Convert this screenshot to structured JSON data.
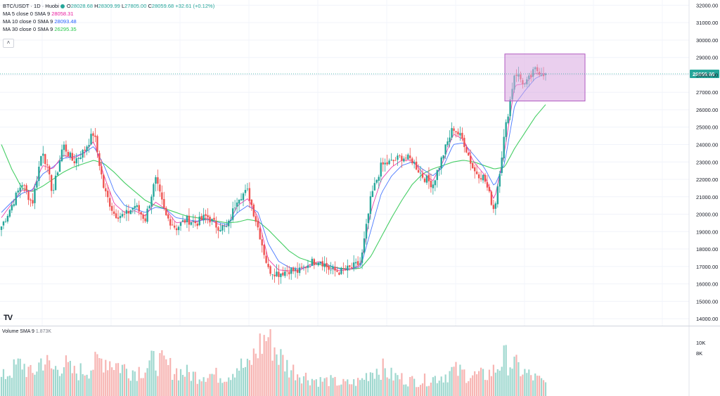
{
  "header": {
    "symbol": "BTC/USDT · 1D · Huobi",
    "open": "O28028.68",
    "high": "H28309.99",
    "low": "L27805.00",
    "close": "C28059.68",
    "change": "+32.61 (+0.12%)",
    "collapse_icon": "chevron-up-icon"
  },
  "indicators": [
    {
      "label": "MA 5 close 0 SMA 9",
      "value": "28058.31",
      "color": "#e91e9f"
    },
    {
      "label": "MA 10 close 0 SMA 9",
      "value": "28093.48",
      "color": "#2962ff"
    },
    {
      "label": "MA 30 close 0 SMA 9",
      "value": "26295.35",
      "color": "#26c64a"
    }
  ],
  "price_label": "28059.68",
  "volume_legend": {
    "label": "Volume SMA 9",
    "value": "1.873K"
  },
  "logo": "TV",
  "colors": {
    "up": "#26a69a",
    "down": "#ef5350",
    "vol_up": "#9fd8cf",
    "vol_down": "#f7b4b2",
    "highlight_fill": "#d9a7e0",
    "highlight_stroke": "#b05ac0",
    "price_line": "#26a69a"
  },
  "chart_data": {
    "type": "candlestick",
    "title": "BTC/USDT · 1D · Huobi",
    "y_axis_ticks": [
      32000,
      31000,
      30000,
      29000,
      28000,
      27000,
      26000,
      25000,
      24000,
      23000,
      22000,
      21000,
      20000,
      19000,
      18000,
      17000,
      16000,
      15000,
      14000
    ],
    "volume_axis_ticks": [
      "10K",
      "8K"
    ],
    "ylim": [
      13600,
      32300
    ],
    "current_price": 28059.68,
    "close_path": [
      19300,
      20500,
      21800,
      20600,
      23800,
      21200,
      24000,
      23000,
      23600,
      24700,
      21400,
      20000,
      19900,
      20500,
      19700,
      22000,
      19900,
      19200,
      19700,
      19500,
      19900,
      19300,
      19200,
      21000,
      21300,
      19200,
      16800,
      16600,
      16800,
      16700,
      17200,
      17400,
      16800,
      16700,
      16900,
      17200,
      21000,
      22800,
      23000,
      23300,
      23100,
      22200,
      21700,
      23400,
      25000,
      24200,
      22500,
      22100,
      20200,
      24600,
      28200,
      27400,
      28300,
      28059.68
    ],
    "ma_short_path": [
      19800,
      20600,
      21400,
      21300,
      22800,
      22600,
      23400,
      23200,
      23500,
      24200,
      22200,
      20600,
      20100,
      20200,
      19900,
      20700,
      20300,
      19500,
      19600,
      19550,
      19800,
      19450,
      19300,
      20500,
      20900,
      19800,
      17400,
      16800,
      16750,
      16750,
      17100,
      17300,
      16900,
      16750,
      16850,
      17100,
      20200,
      22000,
      22700,
      23100,
      23100,
      22400,
      21900,
      23000,
      24600,
      24300,
      23000,
      22300,
      20800,
      23600,
      27400,
      27500,
      28100,
      28058.31
    ],
    "ma_mid_path": [
      20100,
      20700,
      21200,
      21400,
      22300,
      22700,
      23200,
      23300,
      23500,
      23900,
      22800,
      21300,
      20500,
      20300,
      20100,
      20400,
      20300,
      19800,
      19700,
      19600,
      19700,
      19550,
      19400,
      20100,
      20500,
      20100,
      18300,
      17300,
      16950,
      16850,
      17000,
      17200,
      17050,
      16850,
      16850,
      17000,
      19100,
      21200,
      22200,
      22800,
      23000,
      22600,
      22200,
      22700,
      24000,
      24100,
      23400,
      22700,
      21600,
      22900,
      26300,
      27100,
      27800,
      28093.48
    ],
    "ma_long_path": [
      24000,
      22600,
      21500,
      21300,
      21600,
      22000,
      22400,
      22700,
      22900,
      23100,
      22900,
      22400,
      21800,
      21300,
      20800,
      20500,
      20300,
      20100,
      19900,
      19800,
      19700,
      19600,
      19500,
      19550,
      19700,
      19600,
      19100,
      18500,
      17900,
      17500,
      17300,
      17100,
      17000,
      16900,
      16850,
      16900,
      17600,
      18700,
      19800,
      20800,
      21700,
      22300,
      22600,
      22800,
      23000,
      23100,
      23000,
      22800,
      22600,
      22700,
      23800,
      24700,
      25600,
      26295.35
    ],
    "volume_path": [
      3.5,
      5,
      6.5,
      4,
      7.5,
      5,
      6.5,
      4.5,
      5,
      6,
      7.5,
      6.5,
      5.5,
      5,
      5.5,
      7,
      6,
      5,
      4.5,
      4,
      4.5,
      4,
      4,
      6,
      5.5,
      9.5,
      12,
      8,
      5.5,
      4.5,
      3.5,
      3,
      3,
      2.5,
      2.5,
      3,
      5,
      5.5,
      4,
      3.5,
      3,
      3,
      3.5,
      4,
      5,
      4.5,
      4,
      4,
      5,
      7.5,
      6,
      4.5,
      3.5,
      2.5
    ],
    "highlight_region": {
      "price_top": 29200,
      "price_bottom": 26500
    }
  }
}
